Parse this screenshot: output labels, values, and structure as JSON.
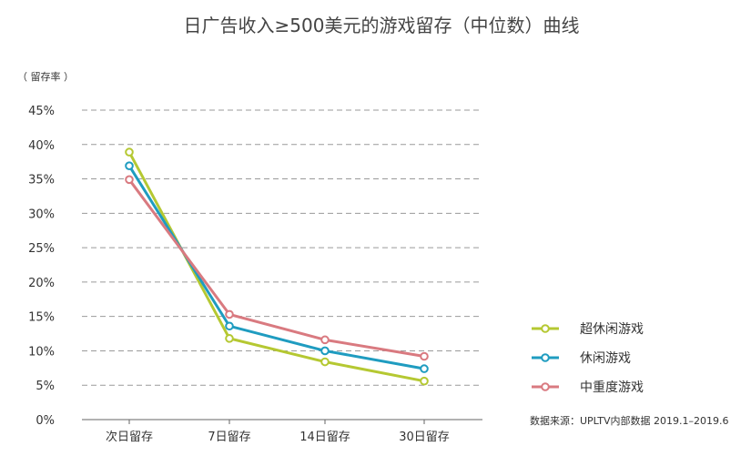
{
  "chart_data": {
    "type": "line",
    "title": "日广告收入≥500美元的游戏留存（中位数）曲线",
    "ylabel": "（ 留存率 ）",
    "categories": [
      "次日留存",
      "7日留存",
      "14日留存",
      "30日留存"
    ],
    "yticks": [
      "0%",
      "5%",
      "10%",
      "15%",
      "20%",
      "25%",
      "30%",
      "35%",
      "40%",
      "45%"
    ],
    "ylim": [
      0,
      45
    ],
    "grid": true,
    "legend_position": "right",
    "series": [
      {
        "name": "超休闲游戏",
        "color": "#b5c832",
        "values": [
          38.9,
          11.8,
          8.4,
          5.6
        ]
      },
      {
        "name": "休闲游戏",
        "color": "#1f9cc0",
        "values": [
          36.9,
          13.6,
          10.0,
          7.4
        ]
      },
      {
        "name": "中重度游戏",
        "color": "#d97a80",
        "values": [
          34.9,
          15.3,
          11.6,
          9.2
        ]
      }
    ],
    "source": "数据来源：UPLTV内部数据 2019.1–2019.6"
  }
}
